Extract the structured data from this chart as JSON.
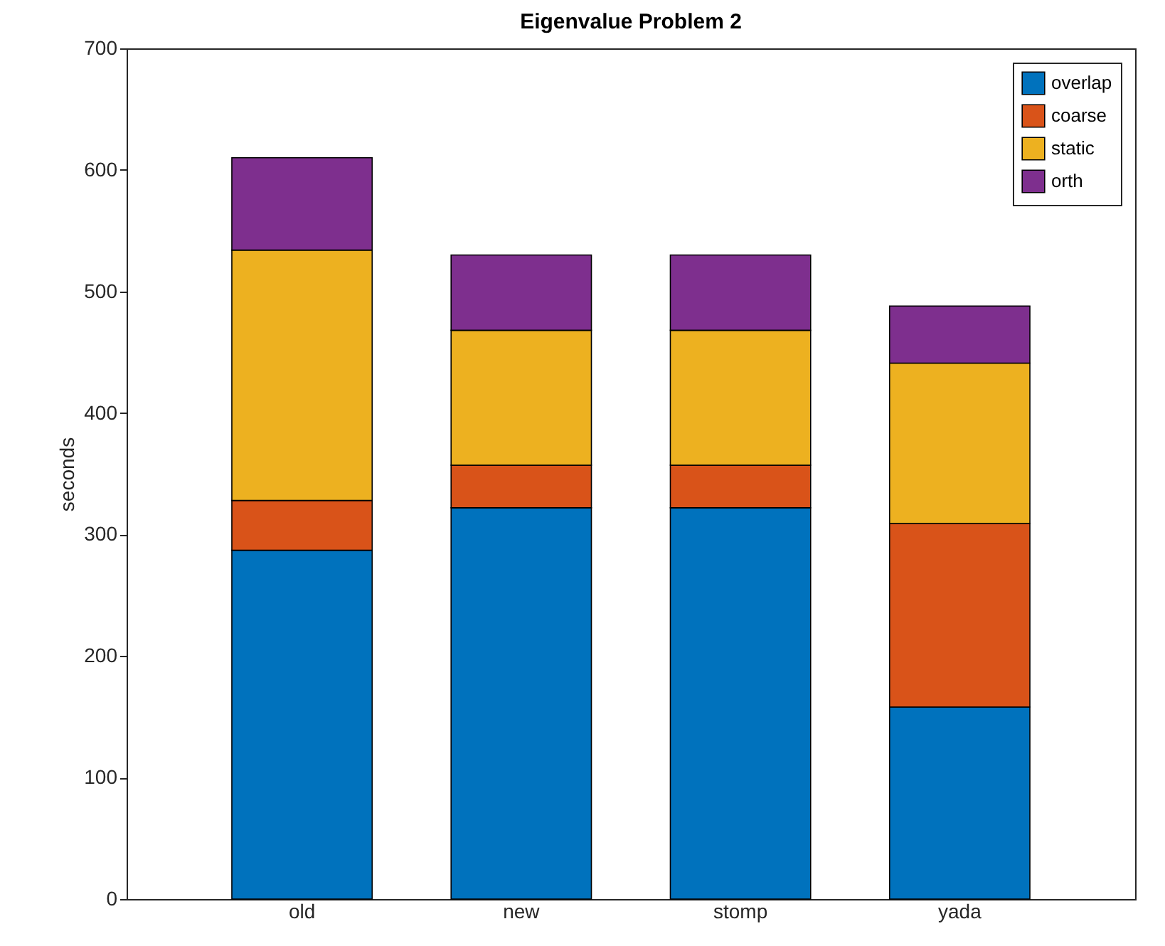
{
  "chart_data": {
    "type": "bar",
    "title": "Eigenvalue Problem 2",
    "ylabel": "seconds",
    "categories": [
      "old",
      "new",
      "stomp",
      "yada"
    ],
    "series": [
      {
        "name": "overlap",
        "color": "#0072bd",
        "values": [
          287,
          322,
          322,
          158
        ]
      },
      {
        "name": "coarse",
        "color": "#d95319",
        "values": [
          41,
          35,
          35,
          151
        ]
      },
      {
        "name": "static",
        "color": "#edb120",
        "values": [
          206,
          111,
          111,
          132
        ]
      },
      {
        "name": "orth",
        "color": "#7e2f8e",
        "values": [
          76,
          62,
          62,
          47
        ]
      }
    ],
    "stacked": true,
    "ylim": [
      0,
      700
    ],
    "yticks": [
      0,
      100,
      200,
      300,
      400,
      500,
      600,
      700
    ],
    "legend": "top right"
  }
}
